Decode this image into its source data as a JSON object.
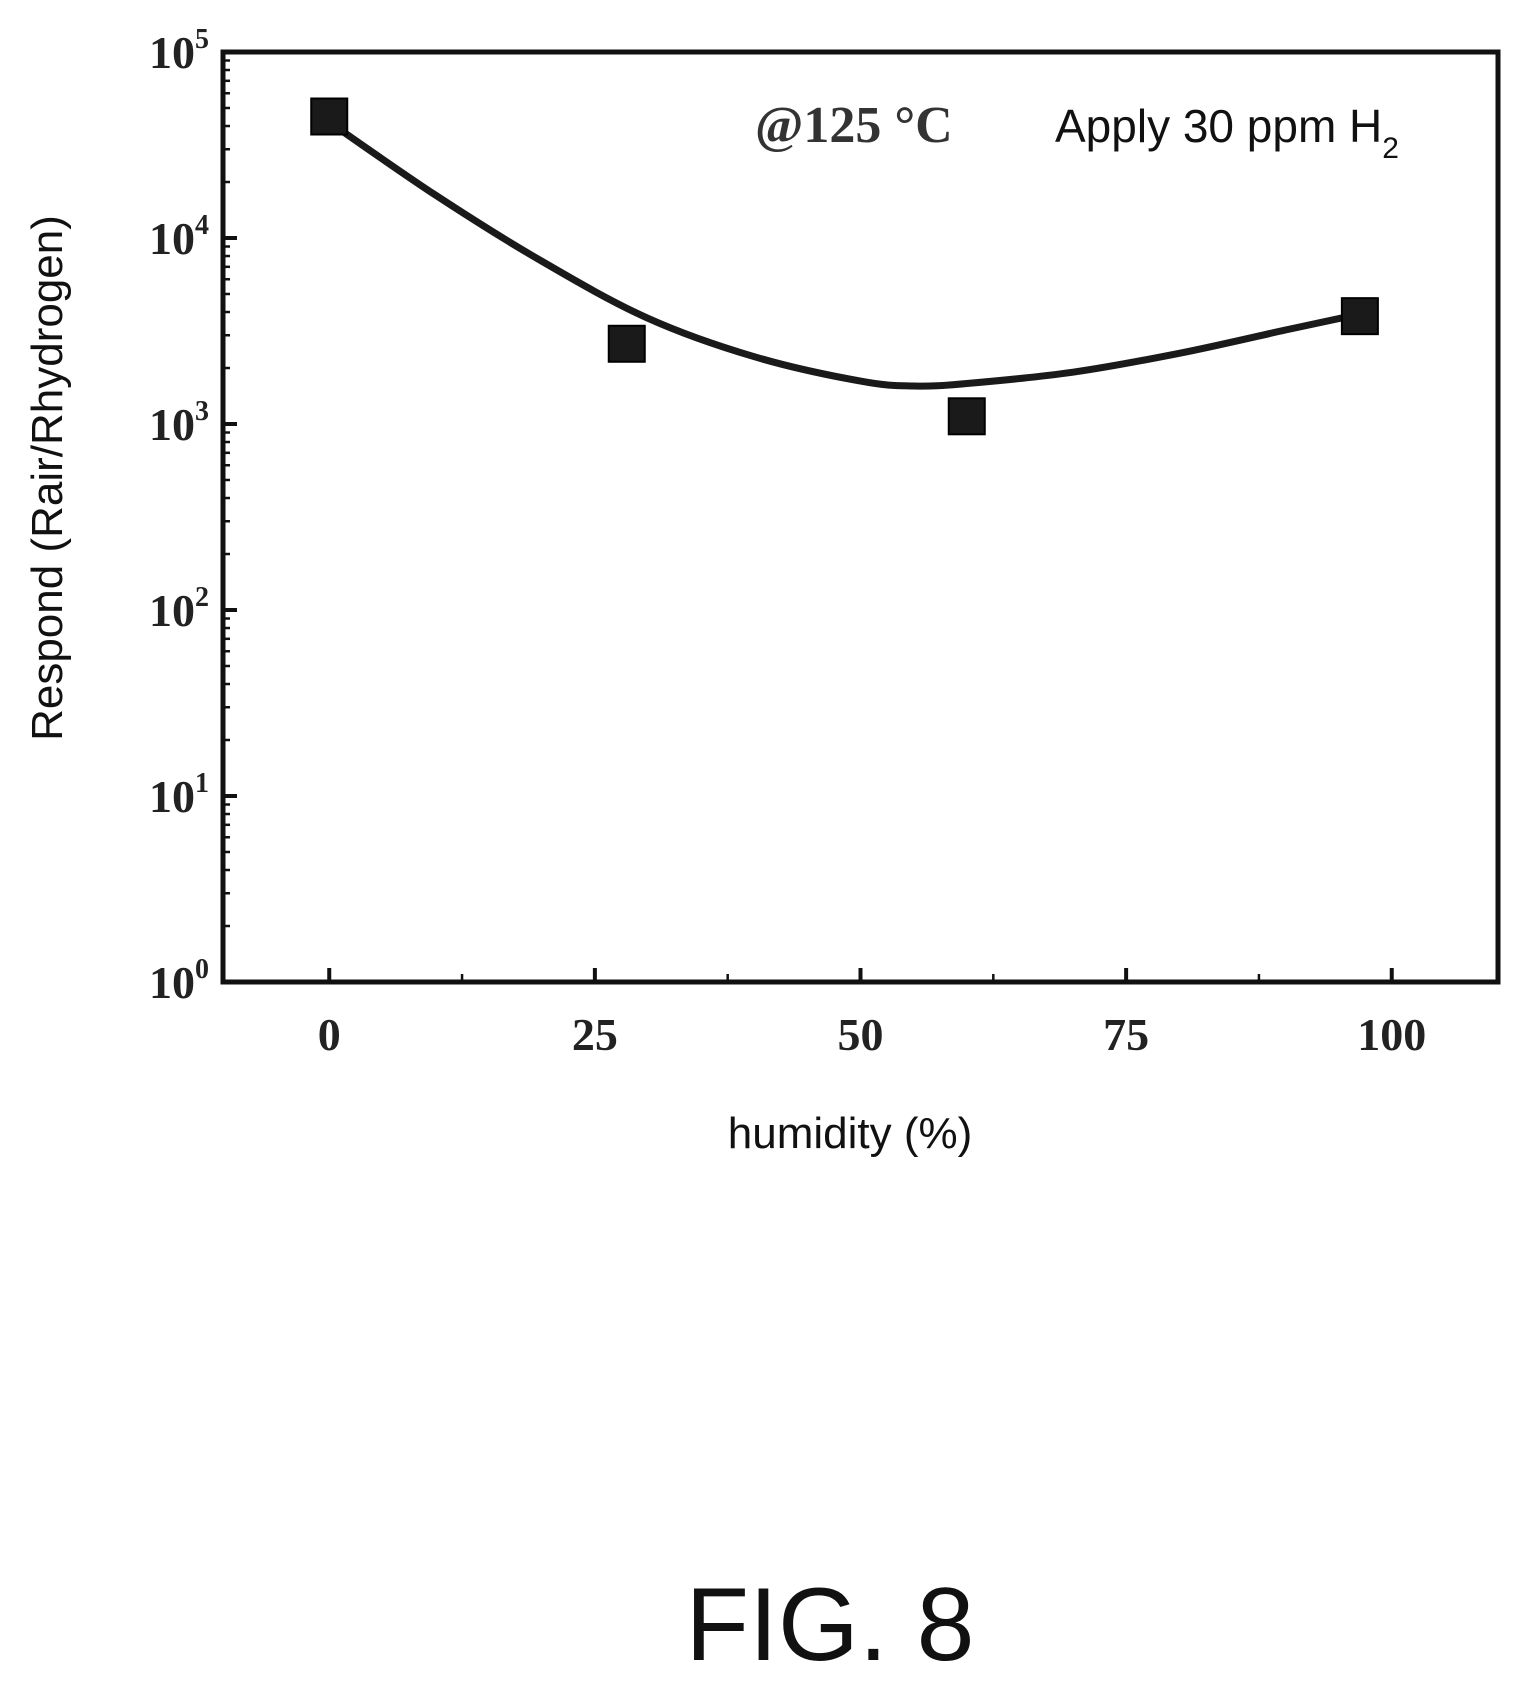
{
  "chart_data": {
    "type": "scatter",
    "xlabel": "humidity (%)",
    "ylabel": "Respond (Rair/Rhydrogen)",
    "xlim": [
      -10,
      110
    ],
    "ylim": [
      1,
      100000
    ],
    "y_scale": "log",
    "x_ticks": [
      "0",
      "25",
      "50",
      "75",
      "100"
    ],
    "y_ticks": [
      {
        "base": "10",
        "exp": "0"
      },
      {
        "base": "10",
        "exp": "1"
      },
      {
        "base": "10",
        "exp": "2"
      },
      {
        "base": "10",
        "exp": "3"
      },
      {
        "base": "10",
        "exp": "4"
      },
      {
        "base": "10",
        "exp": "5"
      }
    ],
    "series": [
      {
        "marker": "square",
        "x": [
          0,
          28,
          60,
          97
        ],
        "y": [
          45000,
          2700,
          1100,
          3800
        ]
      }
    ],
    "fit_curve": {
      "x": [
        0,
        10,
        20,
        30,
        40,
        50,
        55,
        60,
        70,
        80,
        90,
        97
      ],
      "y": [
        42000,
        17000,
        7500,
        3700,
        2300,
        1700,
        1600,
        1650,
        1900,
        2400,
        3200,
        3900
      ]
    },
    "annotations": {
      "temperature": "@125 °C",
      "gas_text": "Apply 30 ppm H",
      "gas_subscript": "2"
    },
    "colors": {
      "ink": "#111111",
      "marker": "#1a1a1a"
    }
  },
  "figure_label": "FIG. 8"
}
